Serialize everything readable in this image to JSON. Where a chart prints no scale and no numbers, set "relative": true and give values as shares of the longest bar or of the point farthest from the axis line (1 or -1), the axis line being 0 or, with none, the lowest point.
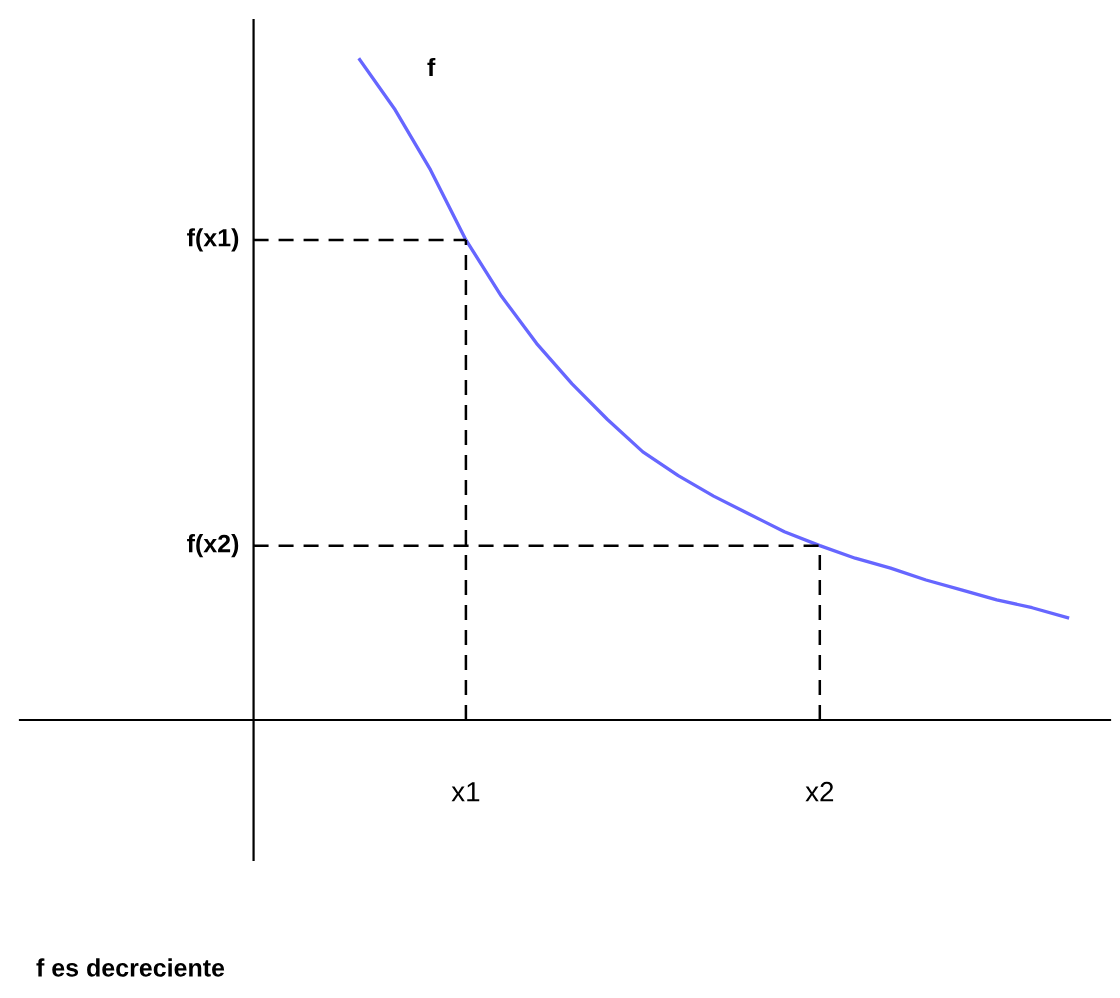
{
  "chart_data": {
    "type": "line",
    "relative": true,
    "categories": [
      null,
      null,
      null,
      "x1",
      null,
      null,
      null,
      null,
      null,
      null,
      null,
      null,
      null,
      "x2",
      null,
      null,
      null,
      null,
      null,
      null,
      null
    ],
    "series": [
      {
        "color": "#6666ff",
        "values": [
          1,
          0.924,
          0.833,
          0.727,
          0.642,
          0.57,
          0.509,
          0.455,
          0.406,
          0.37,
          0.339,
          0.312,
          0.285,
          0.264,
          0.245,
          0.23,
          0.212,
          0.197,
          0.182,
          0.17,
          0.155
        ]
      }
    ],
    "ref_lines": [
      {
        "axis": "y",
        "value": 0.727,
        "label": "f(x1)",
        "color": "#000000",
        "line_style": "dashed"
      },
      {
        "axis": "y",
        "value": 0.264,
        "label": "f(x2)",
        "color": "#000000",
        "line_style": "dashed"
      },
      {
        "axis": "x",
        "value": "x1",
        "color": "#000000",
        "line_style": "dashed"
      },
      {
        "axis": "x",
        "value": "x2",
        "color": "#000000",
        "line_style": "dashed"
      }
    ],
    "annotations": [
      "f",
      "f es decreciente"
    ],
    "grid": false,
    "legend": false,
    "marker": "none",
    "line_style": "solid"
  }
}
